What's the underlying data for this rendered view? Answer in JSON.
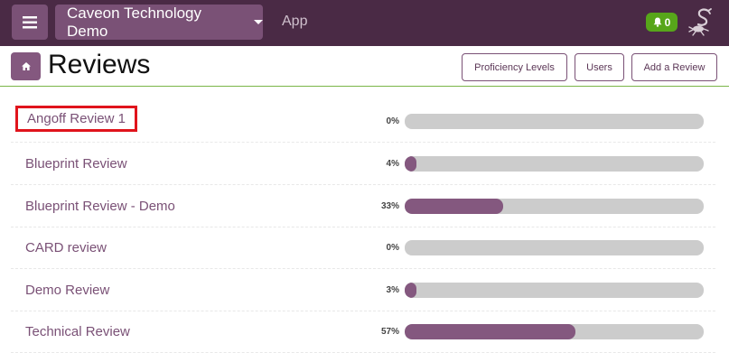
{
  "topbar": {
    "org_name": "Caveon Technology Demo",
    "app_link": "App",
    "notification_count": "0"
  },
  "header": {
    "title": "Reviews",
    "buttons": {
      "proficiency": "Proficiency Levels",
      "users": "Users",
      "add_review": "Add a Review"
    }
  },
  "reviews": [
    {
      "name": "Angoff Review 1",
      "percent_label": "0%",
      "progress": 0
    },
    {
      "name": "Blueprint Review",
      "percent_label": "4%",
      "progress": 0.04
    },
    {
      "name": "Blueprint Review - Demo",
      "percent_label": "33%",
      "progress": 0.33
    },
    {
      "name": "CARD review",
      "percent_label": "0%",
      "progress": 0
    },
    {
      "name": "Demo Review",
      "percent_label": "3%",
      "progress": 0.03
    },
    {
      "name": "Technical Review",
      "percent_label": "57%",
      "progress": 0.57
    }
  ],
  "colors": {
    "topbar": "#4a2a45",
    "accent": "#7a5176",
    "progress_fill": "#84587f",
    "progress_track": "#cccccc",
    "notification": "#57a61a",
    "divider": "#7ab648",
    "highlight": "#e0141c"
  },
  "icons": {
    "menu": "hamburger-icon",
    "home": "home-icon",
    "bell": "bell-icon",
    "logo": "scorpion-logo"
  }
}
